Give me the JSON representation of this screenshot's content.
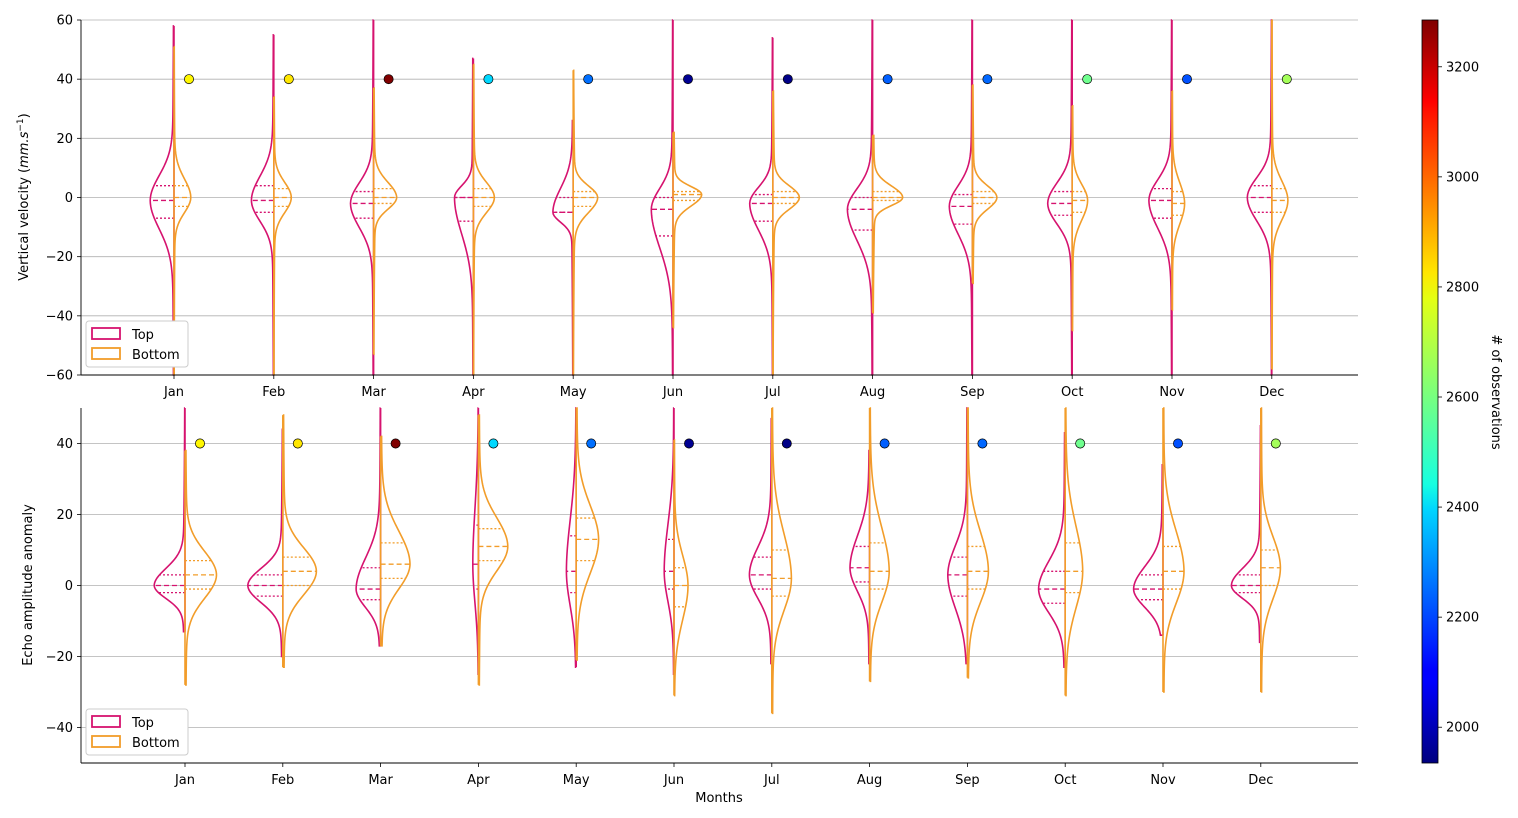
{
  "colors": {
    "top": "#d6136f",
    "bottom": "#f29d2a",
    "grid": "#b0b0b0"
  },
  "legend": {
    "top_label": "Top",
    "bottom_label": "Bottom"
  },
  "colorbar": {
    "label": "# of observations",
    "range": [
      1935,
      3285
    ],
    "ticks": [
      "2000",
      "2200",
      "2400",
      "2600",
      "2800",
      "3000",
      "3200"
    ],
    "tick_values": [
      2000,
      2200,
      2400,
      2600,
      2800,
      3000,
      3200
    ],
    "colormap": "jet"
  },
  "chart_data": [
    {
      "type": "violin",
      "title": "",
      "xlabel": "",
      "ylabel_main": "Vertical velocity (",
      "ylabel_unit_a": "mm.s",
      "ylabel_unit_exp": "−1",
      "ylabel_close": ")",
      "ylim": [
        -60,
        60
      ],
      "yticks": [
        "−60",
        "−40",
        "−20",
        "0",
        "20",
        "40",
        "60"
      ],
      "ytick_values": [
        -60,
        -40,
        -20,
        0,
        20,
        40,
        60
      ],
      "grid": "y",
      "legend_position": "lower-left",
      "categories": [
        "Jan",
        "Feb",
        "Mar",
        "Apr",
        "May",
        "Jun",
        "Jul",
        "Aug",
        "Sep",
        "Oct",
        "Nov",
        "Dec"
      ],
      "marker_y": 40,
      "observations": [
        2790,
        2810,
        3285,
        2390,
        2250,
        1960,
        1945,
        2230,
        2240,
        2590,
        2210,
        2660
      ],
      "series": [
        {
          "name": "Top",
          "side": "left",
          "min": [
            -60,
            -60,
            -60,
            -60,
            -60,
            -60,
            -60,
            -60,
            -60,
            -60,
            -60,
            -60
          ],
          "max": [
            58,
            55,
            60,
            47,
            26,
            60,
            54,
            60,
            60,
            60,
            60,
            60
          ],
          "q1": [
            -7,
            -5,
            -7,
            -8,
            -5,
            -13,
            -8,
            -11,
            -9,
            -6,
            -7,
            -5
          ],
          "median": [
            -1,
            -1,
            -2,
            0,
            -5,
            -4,
            -2,
            -4,
            -3,
            -2,
            -1,
            0
          ],
          "q3": [
            4,
            4,
            2,
            0,
            0,
            0,
            1,
            0,
            1,
            2,
            3,
            4
          ],
          "width": [
            0.34,
            0.32,
            0.33,
            0.27,
            0.29,
            0.31,
            0.33,
            0.36,
            0.33,
            0.35,
            0.33,
            0.35
          ],
          "sd": [
            8,
            7,
            7,
            9,
            7,
            7,
            6,
            7,
            7,
            7,
            7,
            6
          ]
        },
        {
          "name": "Bottom",
          "side": "right",
          "min": [
            -60,
            -60,
            -53,
            -60,
            -60,
            -44,
            -60,
            -39,
            -29,
            -45,
            -38,
            -58
          ],
          "max": [
            51,
            34,
            37,
            45,
            43,
            22,
            36,
            21,
            38,
            31,
            36,
            60
          ],
          "q1": [
            -3,
            -3,
            -2,
            -3,
            -3,
            -1,
            -2,
            -1,
            -2,
            -5,
            -6,
            -5
          ],
          "median": [
            0,
            0,
            0,
            0,
            0,
            1,
            0,
            0,
            0,
            -1,
            -2,
            -1
          ],
          "q3": [
            4,
            3,
            3,
            3,
            2,
            2,
            2,
            2,
            2,
            2,
            2,
            3
          ],
          "width": [
            0.24,
            0.25,
            0.33,
            0.3,
            0.35,
            0.41,
            0.38,
            0.43,
            0.35,
            0.22,
            0.18,
            0.23
          ],
          "sd": [
            5,
            5,
            5,
            5,
            5,
            5,
            5,
            5,
            5,
            6,
            7,
            6
          ]
        }
      ]
    },
    {
      "type": "violin",
      "title": "",
      "xlabel": "Months",
      "ylabel": "Echo amplitude anomaly",
      "ylim": [
        -50,
        50
      ],
      "yticks": [
        "−40",
        "−20",
        "0",
        "20",
        "40"
      ],
      "ytick_values": [
        -40,
        -20,
        0,
        20,
        40
      ],
      "grid": "y",
      "legend_position": "lower-left",
      "categories": [
        "Jan",
        "Feb",
        "Mar",
        "Apr",
        "May",
        "Jun",
        "Jul",
        "Aug",
        "Sep",
        "Oct",
        "Nov",
        "Dec"
      ],
      "marker_y": 40,
      "observations": [
        2790,
        2810,
        3285,
        2390,
        2250,
        1960,
        1945,
        2230,
        2240,
        2590,
        2210,
        2660
      ],
      "series": [
        {
          "name": "Top",
          "side": "left",
          "min": [
            -13,
            -20,
            -17,
            -25,
            -23,
            -25,
            -22,
            -22,
            -22,
            -23,
            -14,
            -16
          ],
          "max": [
            50,
            44,
            50,
            50,
            50,
            50,
            47,
            38,
            50,
            43,
            34,
            45
          ],
          "q1": [
            -2,
            -3,
            -4,
            -1,
            -2,
            -1,
            -1,
            1,
            -3,
            -5,
            -4,
            -2
          ],
          "median": [
            0,
            0,
            -1,
            6,
            4,
            4,
            3,
            5,
            3,
            -1,
            -1,
            0
          ],
          "q3": [
            3,
            3,
            5,
            17,
            14,
            13,
            8,
            11,
            8,
            4,
            3,
            3
          ],
          "width": [
            0.44,
            0.5,
            0.35,
            0.08,
            0.14,
            0.14,
            0.32,
            0.28,
            0.28,
            0.38,
            0.42,
            0.42
          ],
          "sd": [
            4,
            4,
            5,
            8,
            8,
            8,
            6,
            6,
            7,
            6,
            5,
            4
          ]
        },
        {
          "name": "Bottom",
          "side": "right",
          "min": [
            -28,
            -23,
            -17,
            -28,
            -21,
            -31,
            -36,
            -27,
            -26,
            -31,
            -30,
            -30
          ],
          "max": [
            38,
            48,
            42,
            48,
            50,
            41,
            50,
            50,
            50,
            50,
            50,
            50
          ],
          "q1": [
            -1,
            0,
            2,
            7,
            7,
            -6,
            -3,
            -1,
            -1,
            -2,
            -1,
            0
          ],
          "median": [
            3,
            4,
            6,
            11,
            13,
            0,
            2,
            4,
            4,
            4,
            4,
            5
          ],
          "q3": [
            7,
            8,
            12,
            16,
            19,
            5,
            10,
            12,
            11,
            12,
            11,
            10
          ],
          "width": [
            0.45,
            0.48,
            0.42,
            0.42,
            0.32,
            0.2,
            0.28,
            0.28,
            0.3,
            0.25,
            0.3,
            0.28
          ],
          "sd": [
            6,
            6,
            7,
            7,
            8,
            8,
            10,
            9,
            9,
            10,
            10,
            9
          ]
        }
      ]
    }
  ]
}
